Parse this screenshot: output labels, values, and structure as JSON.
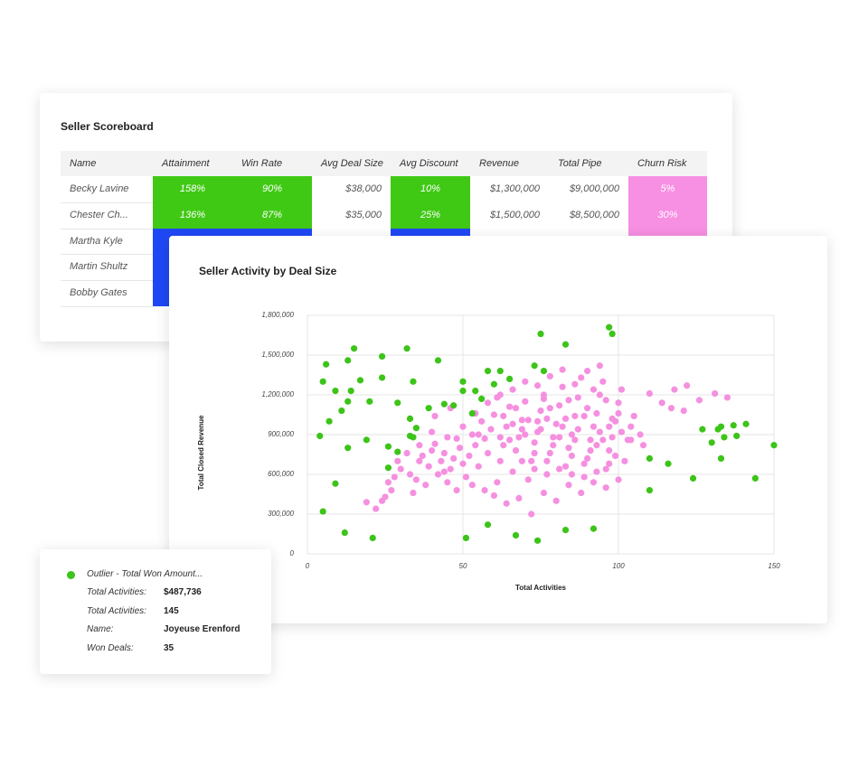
{
  "table": {
    "title": "Seller Scoreboard",
    "header_bg": "#f3f3f4",
    "columns": [
      "Name",
      "Attainment",
      "Win Rate",
      "Avg Deal Size",
      "Avg Discount",
      "Revenue",
      "Total Pipe",
      "Churn Risk"
    ],
    "rows": [
      {
        "cells": [
          "Becky Lavine",
          "158%",
          "90%",
          "$38,000",
          "10%",
          "$1,300,000",
          "$9,000,000",
          "5%"
        ],
        "colors": [
          null,
          "#40c914",
          "#40c914",
          null,
          "#40c914",
          null,
          null,
          "#f78fe2"
        ]
      },
      {
        "cells": [
          "Chester Ch...",
          "136%",
          "87%",
          "$35,000",
          "25%",
          "$1,500,000",
          "$8,500,000",
          "30%"
        ],
        "colors": [
          null,
          "#40c914",
          "#40c914",
          null,
          "#40c914",
          null,
          null,
          "#f78fe2"
        ]
      },
      {
        "cells": [
          "Martha Kyle"
        ],
        "colors": [
          null,
          "#1f48f5",
          "#1f48f5",
          null,
          "#1f48f5",
          null,
          null,
          "#f78fe2"
        ]
      },
      {
        "cells": [
          "Martin Shultz"
        ],
        "colors": [
          null,
          "#1f48f5",
          "#1f48f5",
          null,
          null,
          null,
          null,
          null
        ]
      },
      {
        "cells": [
          "Bobby Gates"
        ],
        "colors": [
          null,
          "#1f48f5",
          "#1f48f5",
          null,
          null,
          null,
          null,
          null
        ]
      }
    ]
  },
  "chart_data": {
    "type": "scatter",
    "title": "Seller Activity by Deal Size",
    "x_label": "Total Activities",
    "y_label": "Total Closed Revenue",
    "xlim": [
      0,
      150
    ],
    "xticks": [
      0,
      50,
      100,
      150
    ],
    "ylim": [
      0,
      1800000
    ],
    "yticks": [
      0,
      {
        "value": 300000,
        "label": "300,000"
      },
      {
        "value": 600000,
        "label": "600,000"
      },
      {
        "value": 900000,
        "label": "900,000"
      },
      {
        "value": 1200000,
        "label": "1,200,000"
      },
      {
        "value": 1500000,
        "label": "1,500,000"
      },
      {
        "value": 1800000,
        "label": "1,800,000"
      }
    ],
    "grid": true,
    "series": [
      {
        "color": "#f590e0",
        "x": [
          19,
          24,
          25,
          26,
          28,
          30,
          33,
          34,
          35,
          36,
          37,
          38,
          39,
          40,
          41,
          42,
          43,
          44,
          45,
          46,
          47,
          48,
          49,
          50,
          51,
          52,
          53,
          54,
          55,
          56,
          57,
          58,
          59,
          60,
          61,
          62,
          63,
          64,
          65,
          66,
          67,
          68,
          69,
          70,
          71,
          72,
          73,
          74,
          75,
          76,
          77,
          78,
          79,
          80,
          81,
          82,
          83,
          84,
          85,
          86,
          87,
          88,
          89,
          90,
          91,
          92,
          93,
          94,
          95,
          96,
          97,
          98,
          99,
          100,
          101,
          102,
          103,
          104,
          105,
          107,
          108,
          110,
          114,
          117,
          118,
          121,
          122,
          126,
          131,
          135,
          60,
          64,
          68,
          72,
          76,
          80,
          84,
          88,
          92,
          96,
          100,
          57,
          53,
          48,
          44,
          62,
          66,
          70,
          74,
          78,
          82,
          86,
          90,
          94,
          98,
          67,
          71,
          75,
          79,
          83,
          87,
          91,
          95,
          99,
          63,
          69,
          73,
          77,
          81,
          85,
          89,
          93,
          97,
          101,
          65,
          69,
          73,
          77,
          81,
          85,
          89,
          93,
          97,
          55,
          50,
          45,
          40,
          36,
          32,
          29,
          27,
          22,
          41,
          46,
          58,
          62,
          66,
          70,
          74,
          78,
          82,
          86,
          90,
          94,
          54,
          61,
          76,
          84,
          92,
          96,
          100,
          104
        ],
        "values": [
          390000,
          400000,
          430000,
          540000,
          580000,
          640000,
          600000,
          460000,
          560000,
          700000,
          740000,
          520000,
          660000,
          780000,
          830000,
          600000,
          700000,
          760000,
          540000,
          640000,
          720000,
          870000,
          800000,
          680000,
          580000,
          740000,
          900000,
          820000,
          660000,
          1000000,
          870000,
          760000,
          940000,
          1050000,
          540000,
          700000,
          820000,
          960000,
          1110000,
          620000,
          780000,
          880000,
          1010000,
          1150000,
          560000,
          700000,
          840000,
          920000,
          1080000,
          1200000,
          600000,
          760000,
          880000,
          980000,
          1120000,
          1260000,
          660000,
          800000,
          900000,
          1040000,
          1180000,
          1330000,
          580000,
          720000,
          860000,
          960000,
          1060000,
          1200000,
          1300000,
          640000,
          780000,
          880000,
          1000000,
          1140000,
          1240000,
          700000,
          860000,
          960000,
          1040000,
          900000,
          820000,
          1210000,
          1140000,
          1100000,
          1240000,
          1080000,
          1270000,
          1160000,
          1210000,
          1180000,
          440000,
          380000,
          420000,
          300000,
          460000,
          400000,
          520000,
          460000,
          540000,
          500000,
          560000,
          480000,
          520000,
          480000,
          620000,
          880000,
          980000,
          900000,
          1000000,
          1100000,
          960000,
          860000,
          1100000,
          920000,
          1020000,
          1100000,
          1010000,
          940000,
          820000,
          1020000,
          940000,
          780000,
          860000,
          740000,
          1040000,
          940000,
          760000,
          1020000,
          880000,
          740000,
          1040000,
          820000,
          960000,
          920000,
          860000,
          700000,
          640000,
          700000,
          640000,
          600000,
          680000,
          620000,
          680000,
          900000,
          960000,
          880000,
          920000,
          820000,
          760000,
          700000,
          480000,
          340000,
          1040000,
          1100000,
          1140000,
          1200000,
          1240000,
          1300000,
          1270000,
          1340000,
          1390000,
          1280000,
          1380000,
          1420000,
          1060000,
          1180000,
          1170000,
          1160000,
          1240000,
          1160000,
          1060000,
          860000
        ]
      },
      {
        "color": "#3cc418",
        "x": [
          5,
          6,
          13,
          15,
          24,
          32,
          42,
          9,
          14,
          4,
          11,
          13,
          7,
          17,
          20,
          24,
          29,
          34,
          33,
          35,
          34,
          39,
          44,
          47,
          50,
          50,
          54,
          58,
          62,
          60,
          56,
          65,
          73,
          76,
          13,
          19,
          26,
          29,
          33,
          26,
          9,
          5,
          12,
          21,
          51,
          58,
          67,
          74,
          83,
          92,
          75,
          83,
          97,
          98,
          110,
          116,
          110,
          124,
          127,
          130,
          132,
          133,
          134,
          137,
          138,
          141,
          133,
          144,
          150,
          53
        ],
        "values": [
          1300000,
          1430000,
          1460000,
          1550000,
          1490000,
          1550000,
          1460000,
          1230000,
          1230000,
          890000,
          1080000,
          1150000,
          1000000,
          1310000,
          1150000,
          1330000,
          1140000,
          1300000,
          1020000,
          950000,
          880000,
          1100000,
          1130000,
          1120000,
          1300000,
          1230000,
          1230000,
          1380000,
          1380000,
          1280000,
          1170000,
          1320000,
          1420000,
          1380000,
          800000,
          860000,
          810000,
          770000,
          890000,
          650000,
          530000,
          320000,
          160000,
          120000,
          120000,
          220000,
          140000,
          100000,
          180000,
          190000,
          1660000,
          1580000,
          1710000,
          1660000,
          720000,
          680000,
          480000,
          570000,
          940000,
          840000,
          940000,
          960000,
          880000,
          970000,
          890000,
          980000,
          720000,
          570000,
          820000,
          1060000
        ]
      }
    ]
  },
  "tooltip": {
    "title": "Outlier - Total Won Amount...",
    "color": "#3cc418",
    "rows": [
      {
        "label": "Total Activities:",
        "value": "$487,736"
      },
      {
        "label": "Total Activities:",
        "value": "145"
      },
      {
        "label": "Name:",
        "value": "Joyeuse Erenford"
      },
      {
        "label": "Won Deals:",
        "value": "35"
      }
    ]
  }
}
